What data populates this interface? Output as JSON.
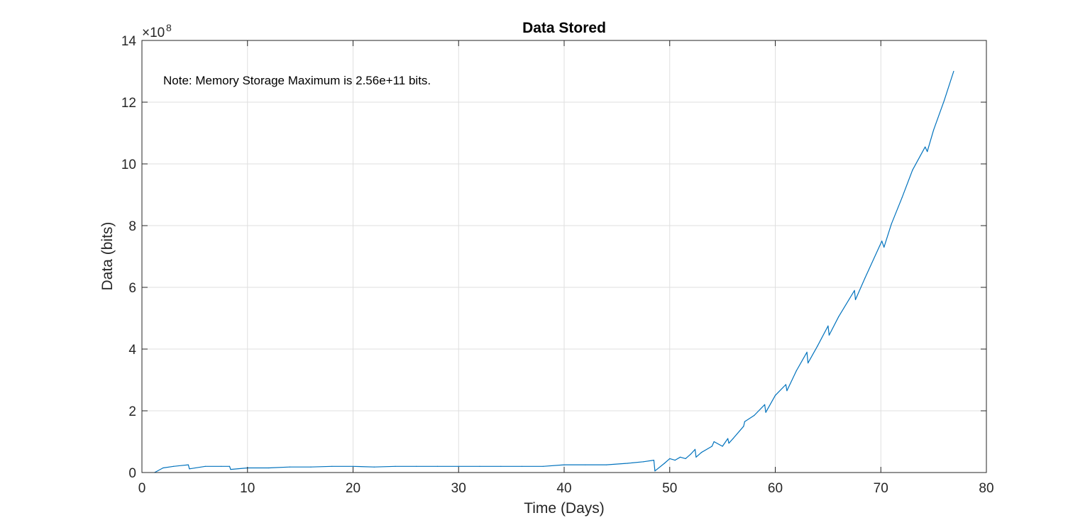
{
  "chart_data": {
    "type": "line",
    "title": "Data Stored",
    "xlabel": "Time (Days)",
    "ylabel": "Data (bits)",
    "xlim": [
      0,
      80
    ],
    "ylim": [
      0,
      14
    ],
    "xticks": [
      0,
      10,
      20,
      30,
      40,
      50,
      60,
      70,
      80
    ],
    "yticks": [
      0,
      2,
      4,
      6,
      8,
      10,
      12,
      14
    ],
    "y_exponent_label": "×10",
    "y_exponent_power": "8",
    "grid": true,
    "annotation": "Note: Memory Storage Maximum is 2.56e+11 bits.",
    "line_color": "#0072bd",
    "series": [
      {
        "x": [
          1.2,
          2,
          3,
          4.4,
          4.5,
          6,
          7.5,
          8.3,
          8.4,
          10,
          12,
          14,
          16,
          18,
          20,
          22,
          24,
          26,
          28,
          30,
          32,
          34,
          36,
          38,
          40,
          42,
          44,
          46,
          47.5,
          48.5,
          48.6,
          49.5,
          50,
          50.5,
          51,
          51.5,
          52,
          52.4,
          52.5,
          53,
          54,
          54.2,
          55,
          55.5,
          55.6,
          56,
          57,
          57.1,
          58,
          59,
          59.1,
          60,
          61,
          61.1,
          62,
          63,
          63.1,
          64,
          65,
          65.1,
          66,
          67.5,
          67.6,
          68.5,
          70.1,
          70.3,
          71,
          72,
          73,
          74.2,
          74.4,
          75,
          76,
          76.9
        ],
        "y": [
          0,
          0.15,
          0.2,
          0.25,
          0.12,
          0.2,
          0.2,
          0.2,
          0.1,
          0.15,
          0.15,
          0.18,
          0.18,
          0.2,
          0.2,
          0.18,
          0.2,
          0.2,
          0.2,
          0.2,
          0.2,
          0.2,
          0.2,
          0.2,
          0.25,
          0.25,
          0.25,
          0.3,
          0.35,
          0.4,
          0.05,
          0.3,
          0.45,
          0.4,
          0.5,
          0.45,
          0.6,
          0.75,
          0.5,
          0.65,
          0.85,
          1.0,
          0.85,
          1.1,
          0.95,
          1.1,
          1.5,
          1.65,
          1.85,
          2.2,
          1.95,
          2.5,
          2.85,
          2.65,
          3.3,
          3.9,
          3.55,
          4.1,
          4.75,
          4.45,
          5.05,
          5.9,
          5.6,
          6.3,
          7.5,
          7.3,
          8.05,
          8.9,
          9.8,
          10.55,
          10.4,
          11.1,
          12.05,
          13.0
        ]
      }
    ]
  }
}
